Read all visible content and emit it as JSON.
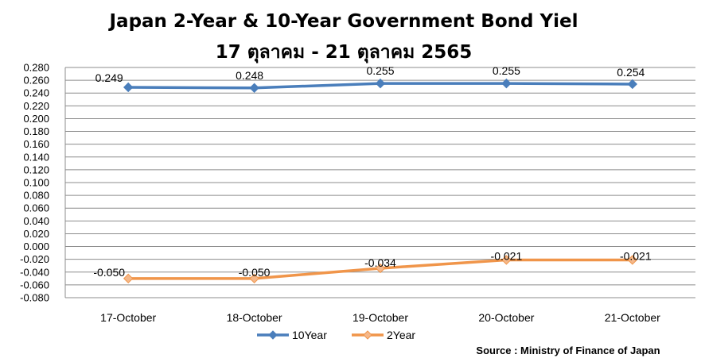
{
  "chart_data": {
    "type": "line",
    "title": "Japan 2-Year & 10-Year Government Bond Yiel",
    "subtitle": "17 ตุลาคม - 21 ตุลาคม 2565",
    "categories": [
      "17-October",
      "18-October",
      "19-October",
      "20-October",
      "21-October"
    ],
    "series": [
      {
        "name": "10Year",
        "color": "#4a7ebb",
        "marker": "diamond",
        "values": [
          0.249,
          0.248,
          0.255,
          0.255,
          0.254
        ],
        "labels": [
          "0.249",
          "0.248",
          "0.255",
          "0.255",
          "0.254"
        ]
      },
      {
        "name": "2Year",
        "color": "#f0954a",
        "marker": "diamond",
        "values": [
          -0.05,
          -0.05,
          -0.034,
          -0.021,
          -0.021
        ],
        "labels": [
          "-0.050",
          "-0.050",
          "-0.034",
          "-0.021",
          "-0.021"
        ]
      }
    ],
    "ylim": [
      -0.08,
      0.28
    ],
    "ystep": 0.02,
    "grid": true,
    "legend_position": "bottom",
    "source": "Source : Ministry of Finance of Japan"
  }
}
